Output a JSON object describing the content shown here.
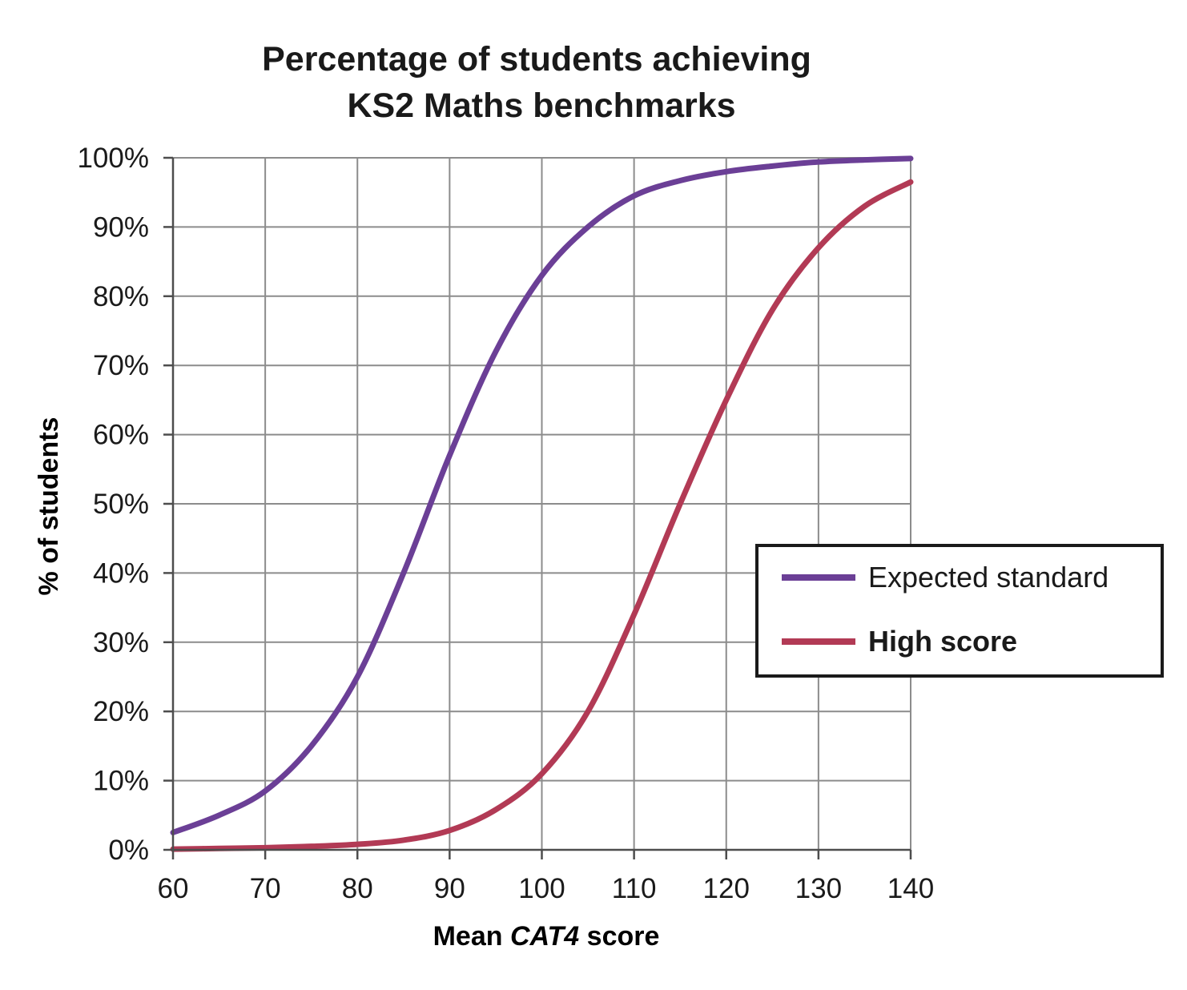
{
  "chart_data": {
    "type": "line",
    "title_lines": [
      "Percentage of students achieving",
      "KS2 Maths benchmarks"
    ],
    "xlabel_prefix": "Mean ",
    "xlabel_italic": "CAT4",
    "xlabel_suffix": " score",
    "ylabel": "% of students",
    "xlim": [
      60,
      140
    ],
    "ylim": [
      0,
      100
    ],
    "x_ticks": [
      60,
      70,
      80,
      90,
      100,
      110,
      120,
      130,
      140
    ],
    "y_ticks": [
      0,
      10,
      20,
      30,
      40,
      50,
      60,
      70,
      80,
      90,
      100
    ],
    "y_tick_labels": [
      "0%",
      "10%",
      "20%",
      "30%",
      "40%",
      "50%",
      "60%",
      "70%",
      "80%",
      "90%",
      "100%"
    ],
    "grid": true,
    "legend_position": "right",
    "series": [
      {
        "name": "Expected standard",
        "color": "#6b3f96",
        "bold_label": false,
        "x": [
          60,
          65,
          70,
          75,
          80,
          85,
          90,
          95,
          100,
          105,
          110,
          115,
          120,
          125,
          130,
          135,
          140
        ],
        "y": [
          2.5,
          5,
          8.5,
          15,
          25,
          40,
          57,
          72,
          83,
          90,
          94.5,
          96.7,
          98,
          98.8,
          99.4,
          99.7,
          99.9
        ]
      },
      {
        "name": "High score",
        "color": "#b23a55",
        "bold_label": true,
        "x": [
          60,
          65,
          70,
          75,
          80,
          85,
          90,
          95,
          100,
          105,
          110,
          115,
          120,
          125,
          130,
          135,
          140
        ],
        "y": [
          0.1,
          0.2,
          0.3,
          0.5,
          0.8,
          1.4,
          2.8,
          5.8,
          11,
          20,
          34,
          50,
          65,
          78,
          87,
          93,
          96.5
        ]
      }
    ]
  }
}
